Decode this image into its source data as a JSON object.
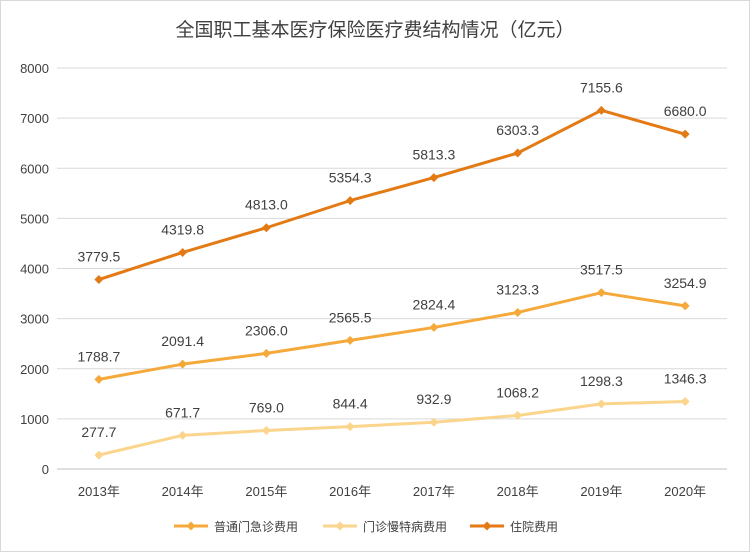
{
  "chart_data": {
    "type": "line",
    "title": "全国职工基本医疗保险医疗费结构情况（亿元）",
    "xlabel": "",
    "ylabel": "",
    "categories": [
      "2013年",
      "2014年",
      "2015年",
      "2016年",
      "2017年",
      "2018年",
      "2019年",
      "2020年"
    ],
    "ylim": [
      0,
      8000
    ],
    "yticks": [
      "0",
      "1000",
      "2000",
      "3000",
      "4000",
      "5000",
      "6000",
      "7000",
      "8000"
    ],
    "grid": true,
    "legend_position": "bottom",
    "series": [
      {
        "name": "普通门急诊费用",
        "color": "#F4A93A",
        "values": [
          1788.7,
          2091.4,
          2306.0,
          2565.5,
          2824.4,
          3123.3,
          3517.5,
          3254.9
        ],
        "labels": [
          "1788.7",
          "2091.4",
          "2306.0",
          "2565.5",
          "2824.4",
          "3123.3",
          "3517.5",
          "3254.9"
        ]
      },
      {
        "name": "门诊慢特病费用",
        "color": "#FAD58B",
        "values": [
          277.7,
          671.7,
          769.0,
          844.4,
          932.9,
          1068.2,
          1298.3,
          1346.3
        ],
        "labels": [
          "277.7",
          "671.7",
          "769.0",
          "844.4",
          "932.9",
          "1068.2",
          "1298.3",
          "1346.3"
        ]
      },
      {
        "name": "住院费用",
        "color": "#E37A14",
        "values": [
          3779.5,
          4319.8,
          4813.0,
          5354.3,
          5813.3,
          6303.3,
          7155.6,
          6680.0
        ],
        "labels": [
          "3779.5",
          "4319.8",
          "4813.0",
          "5354.3",
          "5813.3",
          "6303.3",
          "7155.6",
          "6680.0"
        ]
      }
    ]
  }
}
